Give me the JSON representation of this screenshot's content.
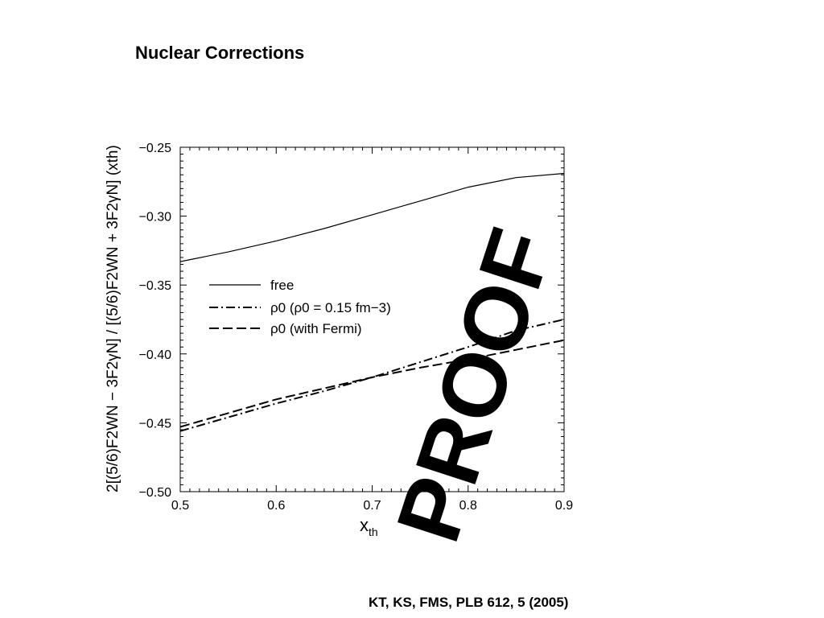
{
  "slide": {
    "title": "Nuclear Corrections",
    "citation": "KT, KS, FMS, PLB 612, 5 (2005)"
  },
  "watermark": "PROOF",
  "chart_data": {
    "type": "line",
    "xlabel": "x",
    "xlabel_sub": "th",
    "ylabel": "2[(5/6)F2WN − 3F2γN] / [(5/6)F2WN + 3F2γN] (xth)",
    "xlim": [
      0.5,
      0.9
    ],
    "ylim": [
      -0.5,
      -0.25
    ],
    "x_ticks": [
      0.5,
      0.6,
      0.7,
      0.8,
      0.9
    ],
    "x_tick_labels": [
      "0.5",
      "0.6",
      "0.7",
      "0.8",
      "0.9"
    ],
    "y_ticks": [
      -0.5,
      -0.45,
      -0.4,
      -0.35,
      -0.3,
      -0.25
    ],
    "y_tick_labels": [
      "−0.50",
      "−0.45",
      "−0.40",
      "−0.35",
      "−0.30",
      "−0.25"
    ],
    "legend_placement": "center-left",
    "legend": [
      {
        "symbol": "",
        "text": "free",
        "style": "solid"
      },
      {
        "symbol": "ρ0",
        "text": "(ρ0 = 0.15 fm−3)",
        "style": "dashdot"
      },
      {
        "symbol": "ρ0",
        "text": "(with Fermi)",
        "style": "dashed"
      }
    ],
    "x": [
      0.5,
      0.55,
      0.6,
      0.65,
      0.7,
      0.75,
      0.8,
      0.85,
      0.9
    ],
    "series": [
      {
        "name": "free",
        "style": "solid",
        "values": [
          -0.333,
          -0.326,
          -0.318,
          -0.309,
          -0.299,
          -0.289,
          -0.279,
          -0.272,
          -0.269
        ]
      },
      {
        "name": "ρ0 (ρ0 = 0.15 fm−3)",
        "style": "dashdot",
        "values": [
          -0.456,
          -0.446,
          -0.436,
          -0.427,
          -0.417,
          -0.406,
          -0.395,
          -0.383,
          -0.375
        ]
      },
      {
        "name": "ρ0 (with Fermi)",
        "style": "dashed",
        "values": [
          -0.453,
          -0.443,
          -0.433,
          -0.425,
          -0.417,
          -0.41,
          -0.404,
          -0.397,
          -0.39
        ]
      }
    ]
  }
}
